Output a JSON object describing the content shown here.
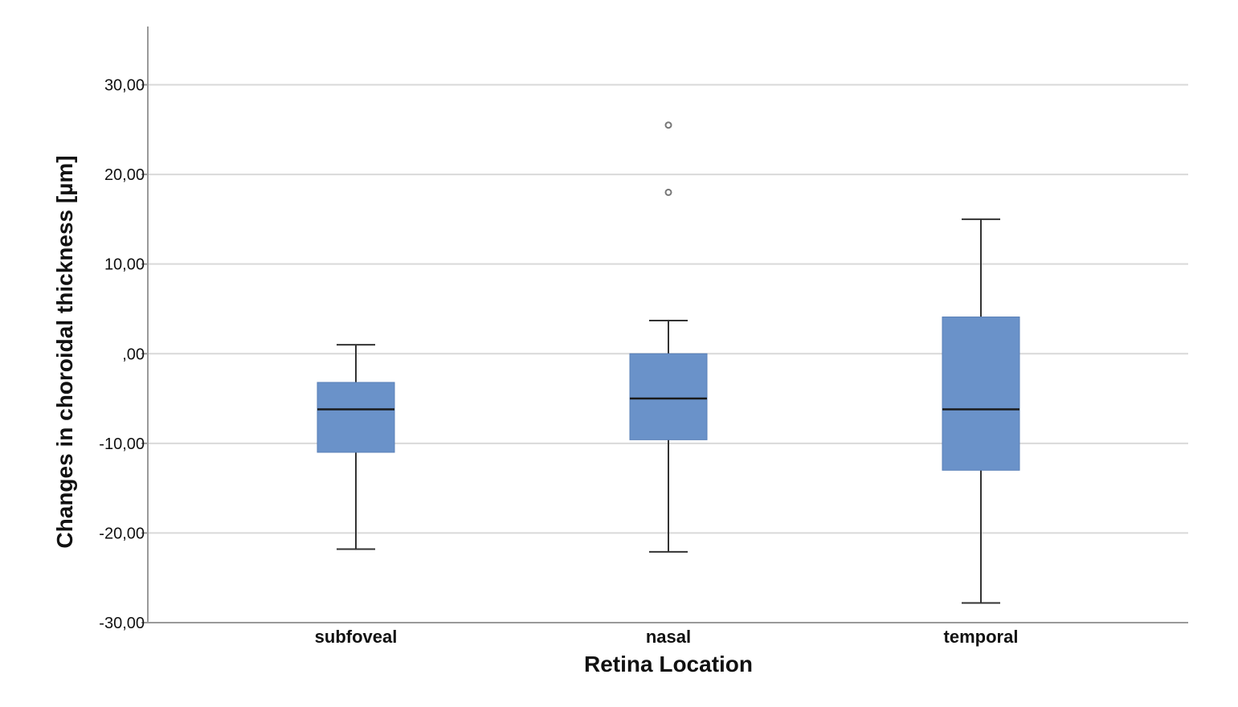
{
  "chart_data": {
    "type": "box",
    "xlabel": "Retina Location",
    "ylabel": "Changes in choroidal thickness [µm]",
    "ylim": [
      -30,
      36.5
    ],
    "grid": true,
    "box_color": "#6a92c9",
    "median_color": "#1a1a1a",
    "yticks": [
      {
        "value": 30,
        "label": "30,00"
      },
      {
        "value": 20,
        "label": "20,00"
      },
      {
        "value": 10,
        "label": "10,00"
      },
      {
        "value": 0,
        "label": ",00"
      },
      {
        "value": -10,
        "label": "-10,00"
      },
      {
        "value": -20,
        "label": "-20,00"
      },
      {
        "value": -30,
        "label": "-30,00"
      }
    ],
    "categories": [
      "subfoveal",
      "nasal",
      "temporal"
    ],
    "boxes": [
      {
        "category": "subfoveal",
        "whisker_low": -21.8,
        "q1": -11.0,
        "median": -6.2,
        "q3": -3.2,
        "whisker_high": 1.0,
        "outliers": []
      },
      {
        "category": "nasal",
        "whisker_low": -22.1,
        "q1": -9.6,
        "median": -5.0,
        "q3": 0.0,
        "whisker_high": 3.7,
        "outliers": [
          25.5,
          18.0
        ]
      },
      {
        "category": "temporal",
        "whisker_low": -27.8,
        "q1": -13.0,
        "median": -6.2,
        "q3": 4.1,
        "whisker_high": 15.0,
        "outliers": []
      }
    ]
  }
}
